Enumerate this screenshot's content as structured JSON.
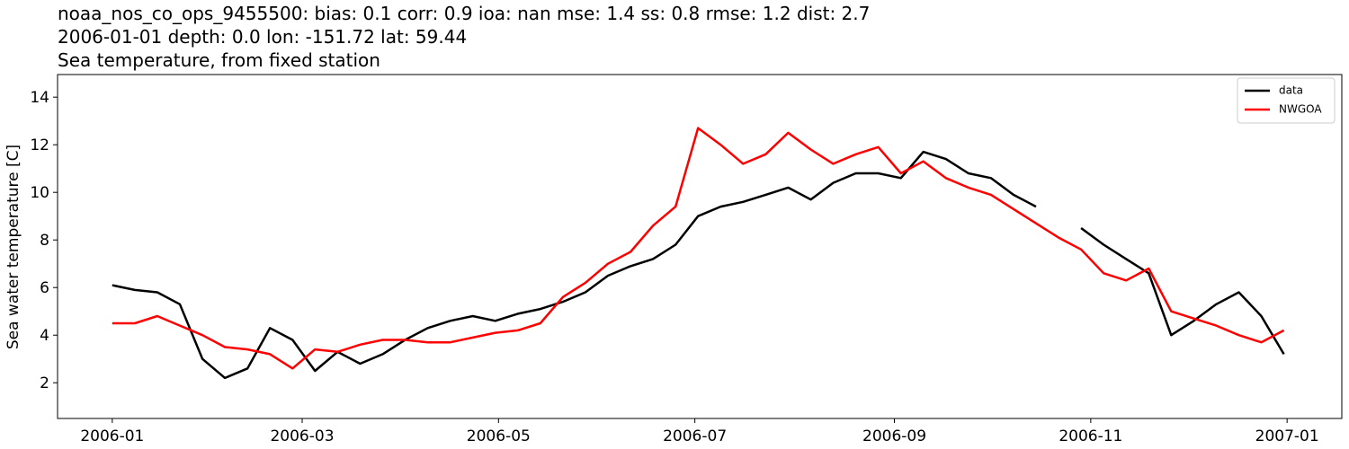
{
  "chart_data": {
    "type": "line",
    "title": "noaa_nos_co_ops_9455500: bias: 0.1  corr: 0.9  ioa: nan  mse: 1.4  ss: 0.8  rmse: 1.2  dist: 2.7",
    "subtitle": "2006-01-01 depth: 0.0 lon: -151.72 lat: 59.44",
    "subtitle2": "Sea temperature, from fixed station",
    "y_label": "Sea water temperature [C]",
    "x": [
      "2006-01-01",
      "2006-01-08",
      "2006-01-15",
      "2006-01-22",
      "2006-01-29",
      "2006-02-05",
      "2006-02-12",
      "2006-02-19",
      "2006-02-26",
      "2006-03-05",
      "2006-03-12",
      "2006-03-19",
      "2006-03-26",
      "2006-04-02",
      "2006-04-09",
      "2006-04-16",
      "2006-04-23",
      "2006-04-30",
      "2006-05-07",
      "2006-05-14",
      "2006-05-21",
      "2006-05-28",
      "2006-06-04",
      "2006-06-11",
      "2006-06-18",
      "2006-06-25",
      "2006-07-02",
      "2006-07-09",
      "2006-07-16",
      "2006-07-23",
      "2006-07-30",
      "2006-08-06",
      "2006-08-13",
      "2006-08-20",
      "2006-08-27",
      "2006-09-03",
      "2006-09-10",
      "2006-09-17",
      "2006-09-24",
      "2006-10-01",
      "2006-10-08",
      "2006-10-15",
      "2006-10-22",
      "2006-10-29",
      "2006-11-05",
      "2006-11-12",
      "2006-11-19",
      "2006-11-26",
      "2006-12-03",
      "2006-12-10",
      "2006-12-17",
      "2006-12-24",
      "2006-12-31"
    ],
    "series": [
      {
        "name": "data",
        "color": "#000000",
        "values": [
          6.1,
          5.9,
          5.8,
          5.3,
          3.0,
          2.2,
          2.6,
          4.3,
          3.8,
          2.5,
          3.3,
          2.8,
          3.2,
          3.8,
          4.3,
          4.6,
          4.8,
          4.6,
          4.9,
          5.1,
          5.4,
          5.8,
          6.5,
          6.9,
          7.2,
          7.8,
          9.0,
          9.4,
          9.6,
          9.9,
          10.2,
          9.7,
          10.4,
          10.8,
          10.8,
          10.6,
          11.7,
          11.4,
          10.8,
          10.6,
          9.9,
          9.4,
          null,
          8.5,
          7.8,
          7.2,
          6.6,
          4.0,
          4.6,
          5.3,
          5.8,
          4.8,
          3.2
        ]
      },
      {
        "name": "NWGOA",
        "color": "#ff0000",
        "values": [
          4.5,
          4.5,
          4.8,
          4.4,
          4.0,
          3.5,
          3.4,
          3.2,
          2.6,
          3.4,
          3.3,
          3.6,
          3.8,
          3.8,
          3.7,
          3.7,
          3.9,
          4.1,
          4.2,
          4.5,
          5.6,
          6.2,
          7.0,
          7.5,
          8.6,
          9.4,
          12.7,
          12.0,
          11.2,
          11.6,
          12.5,
          11.8,
          11.2,
          11.6,
          11.9,
          10.8,
          11.3,
          10.6,
          10.2,
          9.9,
          9.3,
          8.7,
          8.1,
          7.6,
          6.6,
          6.3,
          6.8,
          5.0,
          4.7,
          4.4,
          4.0,
          3.7,
          4.2
        ]
      }
    ],
    "xlim": [
      "2005-12-15",
      "2007-01-18"
    ],
    "xticks": [
      {
        "value": "2006-01-01",
        "label": "2006-01"
      },
      {
        "value": "2006-03-01",
        "label": "2006-03"
      },
      {
        "value": "2006-05-01",
        "label": "2006-05"
      },
      {
        "value": "2006-07-01",
        "label": "2006-07"
      },
      {
        "value": "2006-09-01",
        "label": "2006-09"
      },
      {
        "value": "2006-11-01",
        "label": "2006-11"
      },
      {
        "value": "2007-01-01",
        "label": "2007-01"
      }
    ],
    "ylim": [
      0.5,
      14.95
    ],
    "yticks": [
      2,
      4,
      6,
      8,
      10,
      12,
      14
    ],
    "grid": false,
    "legend": "upper right"
  }
}
